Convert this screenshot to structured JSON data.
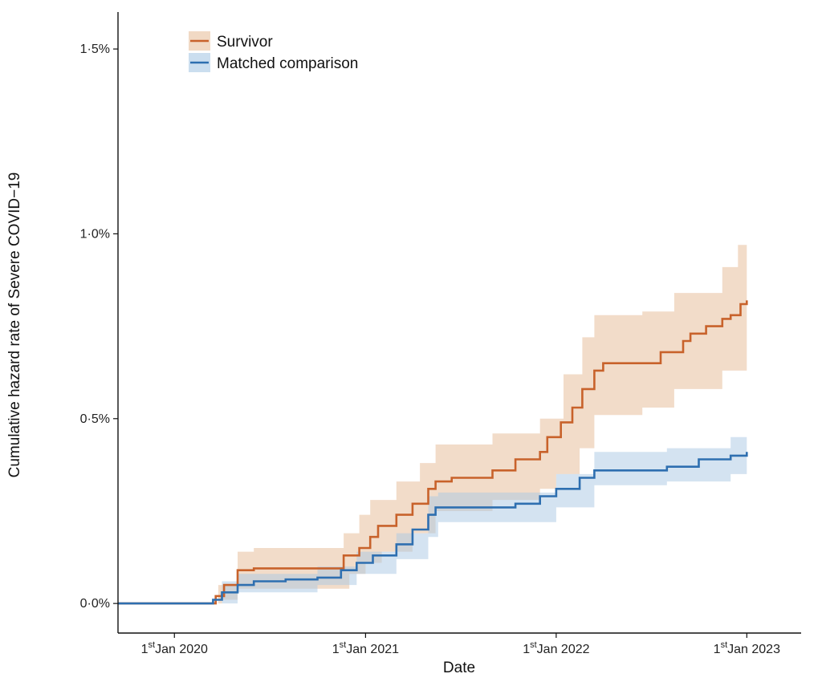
{
  "chart_data": {
    "type": "line",
    "title": "",
    "xlabel": "Date",
    "ylabel": "Cumulative hazard rate of Severe COVID−19",
    "xlim": [
      "2019-09-15",
      "2023-04-15"
    ],
    "ylim": [
      -0.0008,
      0.016
    ],
    "x_ticks": [
      {
        "value": "2020-01-01",
        "prefix": "1",
        "sup": "st",
        "suffix": "Jan 2020"
      },
      {
        "value": "2021-01-01",
        "prefix": "1",
        "sup": "st",
        "suffix": "Jan 2021"
      },
      {
        "value": "2022-01-01",
        "prefix": "1",
        "sup": "st",
        "suffix": "Jan 2022"
      },
      {
        "value": "2023-01-01",
        "prefix": "1",
        "sup": "st",
        "suffix": "Jan 2023"
      }
    ],
    "y_ticks": [
      {
        "value": 0.0,
        "label": "0·0%"
      },
      {
        "value": 0.005,
        "label": "0·5%"
      },
      {
        "value": 0.01,
        "label": "1·0%"
      },
      {
        "value": 0.015,
        "label": "1·5%"
      }
    ],
    "grid": false,
    "legend_position": "top-left",
    "series": [
      {
        "name": "Survivor",
        "color": "#c8622b",
        "band_color": "#e8bf9c",
        "points": [
          [
            "2019-09-15",
            0.0
          ],
          [
            "2020-03-01",
            0.0
          ],
          [
            "2020-03-20",
            0.0002
          ],
          [
            "2020-04-05",
            0.0005
          ],
          [
            "2020-05-01",
            0.0009
          ],
          [
            "2020-06-01",
            0.00095
          ],
          [
            "2020-11-01",
            0.00095
          ],
          [
            "2020-11-20",
            0.0013
          ],
          [
            "2020-12-20",
            0.0015
          ],
          [
            "2021-01-10",
            0.0018
          ],
          [
            "2021-01-25",
            0.0021
          ],
          [
            "2021-03-01",
            0.0024
          ],
          [
            "2021-04-01",
            0.0027
          ],
          [
            "2021-05-01",
            0.0031
          ],
          [
            "2021-05-15",
            0.0033
          ],
          [
            "2021-06-15",
            0.0034
          ],
          [
            "2021-09-01",
            0.0036
          ],
          [
            "2021-10-15",
            0.0039
          ],
          [
            "2021-12-01",
            0.0041
          ],
          [
            "2021-12-15",
            0.0045
          ],
          [
            "2022-01-10",
            0.0049
          ],
          [
            "2022-02-01",
            0.0053
          ],
          [
            "2022-02-20",
            0.0058
          ],
          [
            "2022-03-15",
            0.0063
          ],
          [
            "2022-04-01",
            0.0065
          ],
          [
            "2022-07-01",
            0.0065
          ],
          [
            "2022-07-20",
            0.0068
          ],
          [
            "2022-09-01",
            0.0071
          ],
          [
            "2022-09-15",
            0.0073
          ],
          [
            "2022-10-15",
            0.0075
          ],
          [
            "2022-11-15",
            0.0077
          ],
          [
            "2022-12-01",
            0.0078
          ],
          [
            "2022-12-20",
            0.0081
          ],
          [
            "2023-01-01",
            0.0082
          ]
        ],
        "lower": [
          [
            "2019-09-15",
            0.0
          ],
          [
            "2020-03-01",
            0.0
          ],
          [
            "2020-04-01",
            0.0001
          ],
          [
            "2020-05-01",
            0.0004
          ],
          [
            "2020-11-01",
            0.0004
          ],
          [
            "2020-12-01",
            0.0008
          ],
          [
            "2021-01-01",
            0.0011
          ],
          [
            "2021-02-01",
            0.0014
          ],
          [
            "2021-04-01",
            0.0019
          ],
          [
            "2021-05-15",
            0.0025
          ],
          [
            "2021-09-01",
            0.0028
          ],
          [
            "2021-12-01",
            0.0031
          ],
          [
            "2022-01-01",
            0.0035
          ],
          [
            "2022-02-15",
            0.0042
          ],
          [
            "2022-03-15",
            0.0051
          ],
          [
            "2022-06-15",
            0.0053
          ],
          [
            "2022-08-15",
            0.0058
          ],
          [
            "2022-11-15",
            0.0063
          ],
          [
            "2023-01-01",
            0.0067
          ]
        ],
        "upper": [
          [
            "2019-09-15",
            0.0
          ],
          [
            "2020-02-25",
            0.0
          ],
          [
            "2020-03-25",
            0.0005
          ],
          [
            "2020-05-01",
            0.0014
          ],
          [
            "2020-06-01",
            0.0015
          ],
          [
            "2020-11-01",
            0.0015
          ],
          [
            "2020-11-20",
            0.0019
          ],
          [
            "2020-12-20",
            0.0024
          ],
          [
            "2021-01-10",
            0.0028
          ],
          [
            "2021-03-01",
            0.0033
          ],
          [
            "2021-04-15",
            0.0038
          ],
          [
            "2021-05-15",
            0.0043
          ],
          [
            "2021-09-01",
            0.0046
          ],
          [
            "2021-12-01",
            0.005
          ],
          [
            "2022-01-15",
            0.0062
          ],
          [
            "2022-02-20",
            0.0072
          ],
          [
            "2022-03-15",
            0.0078
          ],
          [
            "2022-06-15",
            0.0079
          ],
          [
            "2022-08-15",
            0.0084
          ],
          [
            "2022-11-15",
            0.0091
          ],
          [
            "2022-12-15",
            0.0097
          ],
          [
            "2023-01-01",
            0.0097
          ]
        ]
      },
      {
        "name": "Matched comparison",
        "color": "#2e6fb0",
        "band_color": "#a9c8e4",
        "points": [
          [
            "2019-09-15",
            0.0
          ],
          [
            "2020-03-01",
            0.0
          ],
          [
            "2020-03-15",
            0.0001
          ],
          [
            "2020-04-01",
            0.0003
          ],
          [
            "2020-05-01",
            0.0005
          ],
          [
            "2020-06-01",
            0.0006
          ],
          [
            "2020-08-01",
            0.00065
          ],
          [
            "2020-10-01",
            0.0007
          ],
          [
            "2020-11-15",
            0.0009
          ],
          [
            "2020-12-15",
            0.0011
          ],
          [
            "2021-01-15",
            0.0013
          ],
          [
            "2021-03-01",
            0.0016
          ],
          [
            "2021-04-01",
            0.002
          ],
          [
            "2021-05-01",
            0.0024
          ],
          [
            "2021-05-15",
            0.0026
          ],
          [
            "2021-09-01",
            0.0026
          ],
          [
            "2021-10-15",
            0.0027
          ],
          [
            "2021-12-01",
            0.0029
          ],
          [
            "2022-01-01",
            0.0031
          ],
          [
            "2022-02-15",
            0.0034
          ],
          [
            "2022-03-15",
            0.0036
          ],
          [
            "2022-06-01",
            0.0036
          ],
          [
            "2022-08-01",
            0.0037
          ],
          [
            "2022-10-01",
            0.0039
          ],
          [
            "2022-12-01",
            0.004
          ],
          [
            "2023-01-01",
            0.0041
          ]
        ],
        "lower": [
          [
            "2019-09-15",
            0.0
          ],
          [
            "2020-03-15",
            0.0
          ],
          [
            "2020-05-01",
            0.0003
          ],
          [
            "2020-10-01",
            0.0005
          ],
          [
            "2020-12-15",
            0.0008
          ],
          [
            "2021-03-01",
            0.0012
          ],
          [
            "2021-05-01",
            0.0018
          ],
          [
            "2021-05-20",
            0.0022
          ],
          [
            "2021-09-01",
            0.0022
          ],
          [
            "2022-01-01",
            0.0026
          ],
          [
            "2022-03-15",
            0.0032
          ],
          [
            "2022-08-01",
            0.0033
          ],
          [
            "2022-12-01",
            0.0035
          ],
          [
            "2023-01-01",
            0.0036
          ]
        ],
        "upper": [
          [
            "2019-09-15",
            0.0
          ],
          [
            "2020-03-01",
            0.0
          ],
          [
            "2020-04-01",
            0.0006
          ],
          [
            "2020-05-01",
            0.0008
          ],
          [
            "2020-10-01",
            0.001
          ],
          [
            "2020-12-15",
            0.0014
          ],
          [
            "2021-03-01",
            0.0019
          ],
          [
            "2021-05-01",
            0.0029
          ],
          [
            "2021-05-20",
            0.003
          ],
          [
            "2021-09-01",
            0.003
          ],
          [
            "2022-01-01",
            0.0035
          ],
          [
            "2022-03-15",
            0.0041
          ],
          [
            "2022-08-01",
            0.0042
          ],
          [
            "2022-12-01",
            0.0045
          ],
          [
            "2023-01-01",
            0.0046
          ]
        ]
      }
    ]
  }
}
